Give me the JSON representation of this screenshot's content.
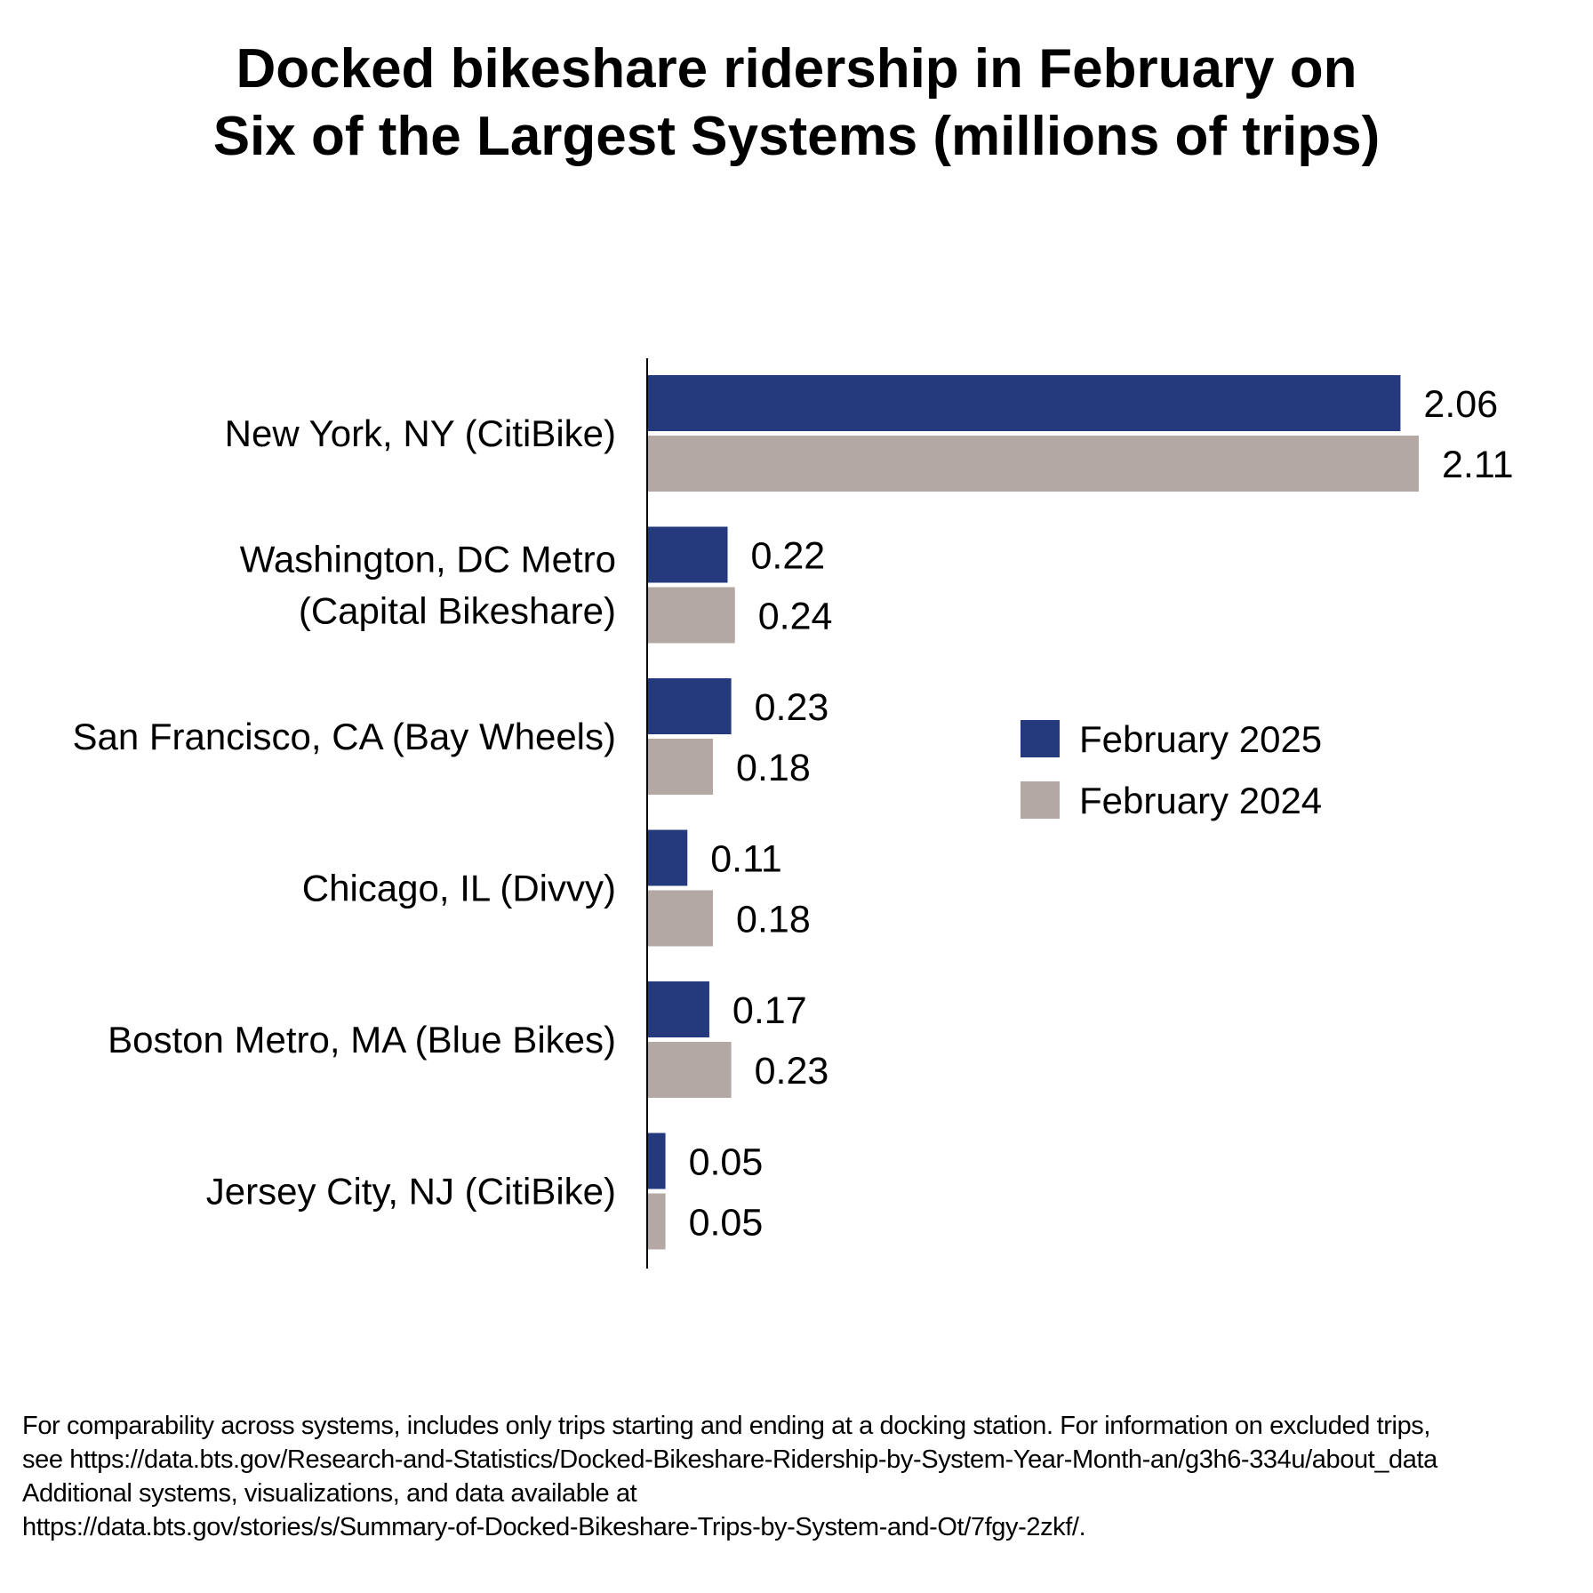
{
  "chart_data": {
    "type": "bar",
    "orientation": "horizontal",
    "title": "Docked bikeshare ridership in February on Six of the Largest Systems (millions of trips)",
    "title_lines": [
      "Docked bikeshare ridership in February on",
      "Six of the Largest Systems (millions of trips)"
    ],
    "categories": [
      [
        "New York, NY (CitiBike)"
      ],
      [
        "Washington, DC Metro",
        "(Capital Bikeshare)"
      ],
      [
        "San Francisco, CA (Bay Wheels)"
      ],
      [
        "Chicago, IL (Divvy)"
      ],
      [
        "Boston Metro, MA (Blue Bikes)"
      ],
      [
        "Jersey City, NJ (CitiBike)"
      ]
    ],
    "series": [
      {
        "name": "February 2025",
        "color": "#243a7d",
        "values": [
          2.06,
          0.22,
          0.23,
          0.11,
          0.17,
          0.05
        ],
        "labels": [
          "2.06",
          "0.22",
          "0.23",
          "0.11",
          "0.17",
          "0.05"
        ]
      },
      {
        "name": "February 2024",
        "color": "#b3a8a3",
        "values": [
          2.11,
          0.24,
          0.18,
          0.18,
          0.23,
          0.05
        ],
        "labels": [
          "2.11",
          "0.24",
          "0.18",
          "0.18",
          "0.23",
          "0.05"
        ]
      }
    ],
    "xlim": [
      0,
      2.11
    ],
    "grid": false,
    "data_labels": true,
    "legend_position": "right"
  },
  "footnote": [
    "For comparability across systems, includes only trips starting and ending at a docking station. For information on excluded trips,",
    "see https://data.bts.gov/Research-and-Statistics/Docked-Bikeshare-Ridership-by-System-Year-Month-an/g3h6-334u/about_data",
    "Additional systems, visualizations, and data available at",
    "https://data.bts.gov/stories/s/Summary-of-Docked-Bikeshare-Trips-by-System-and-Ot/7fgy-2zkf/."
  ]
}
